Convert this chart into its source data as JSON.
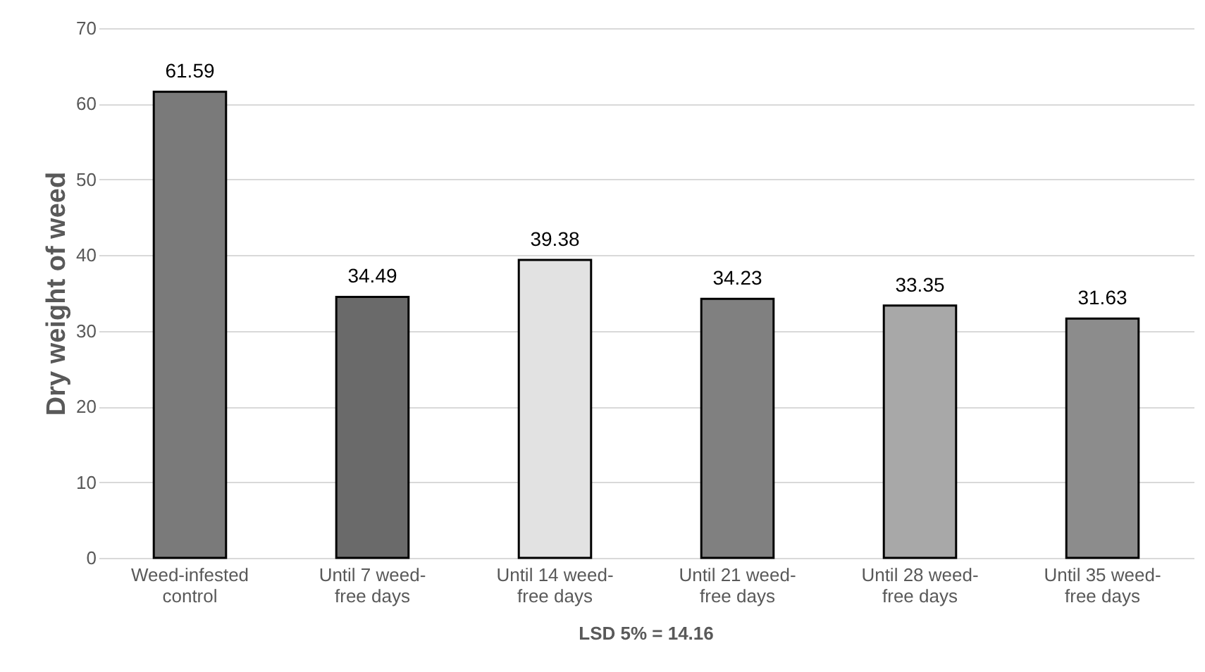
{
  "chart_data": {
    "type": "bar",
    "ylabel": "Dry weight of weed",
    "categories": [
      "Weed-infested control",
      "Until 7 weed-free days",
      "Until 14 weed-free days",
      "Until 21 weed-free days",
      "Until 28 weed-free days",
      "Until 35 weed-free days"
    ],
    "values": [
      61.59,
      34.49,
      39.38,
      34.23,
      33.35,
      31.63
    ],
    "colors": [
      "#7a7a7a",
      "#6a6a6a",
      "#e2e2e2",
      "#808080",
      "#a8a8a8",
      "#8c8c8c"
    ],
    "ylim": [
      0,
      70
    ],
    "yticks": [
      0,
      10,
      20,
      30,
      40,
      50,
      60,
      70
    ],
    "grid": "y",
    "data_labels": true,
    "annotations": [
      "LSD 5% = 14.16"
    ]
  }
}
